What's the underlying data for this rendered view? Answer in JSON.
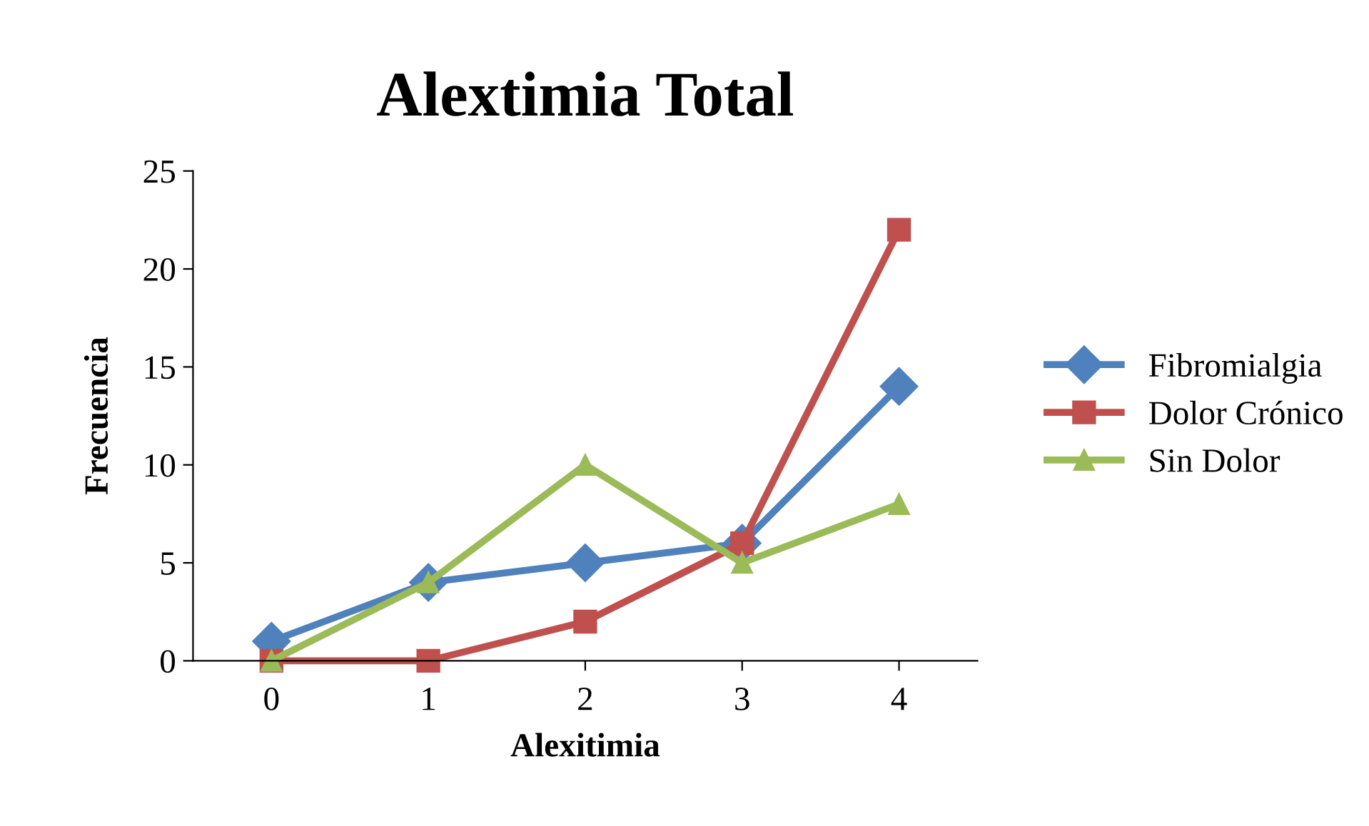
{
  "chart_data": {
    "type": "line",
    "title": "Alextimia Total",
    "xlabel": "Alexitimia",
    "ylabel": "Frecuencia",
    "categories": [
      "0",
      "1",
      "2",
      "3",
      "4"
    ],
    "series": [
      {
        "name": "Fibromialgia",
        "color": "#4f81bd",
        "marker": "diamond",
        "values": [
          1,
          4,
          5,
          6,
          14
        ]
      },
      {
        "name": "Dolor Crónico",
        "color": "#c0504d",
        "marker": "square",
        "values": [
          0,
          0,
          2,
          6,
          22
        ]
      },
      {
        "name": "Sin Dolor",
        "color": "#9bbb59",
        "marker": "triangle",
        "values": [
          0,
          4,
          10,
          5,
          8
        ]
      }
    ],
    "ylim": [
      0,
      25
    ],
    "yticks": [
      0,
      5,
      10,
      15,
      20,
      25
    ],
    "grid": false,
    "legend": "right"
  }
}
